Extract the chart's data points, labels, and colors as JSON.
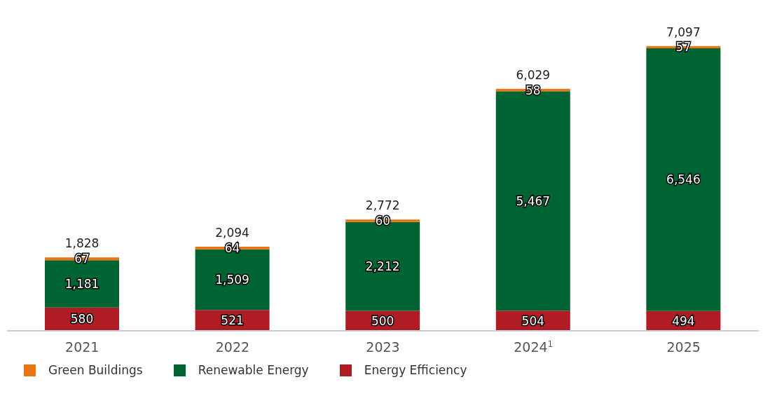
{
  "chart_data": {
    "type": "bar",
    "stacked": true,
    "categories": [
      "2021",
      "2022",
      "2023",
      "2024$^{1}$",
      "2025"
    ],
    "series": [
      {
        "name": "Energy Efficiency",
        "color": "#b01c23",
        "values": [
          580,
          521,
          500,
          504,
          494
        ],
        "value_labels": [
          "580",
          "521",
          "500",
          "504",
          "494"
        ]
      },
      {
        "name": "Renewable Energy",
        "color": "#006432",
        "values": [
          1181,
          1509,
          2212,
          5467,
          6546
        ],
        "value_labels": [
          "1,181",
          "1,509",
          "2,212",
          "5,467",
          "6,546"
        ]
      },
      {
        "name": "Green Buildings",
        "color": "#e87511",
        "values": [
          67,
          64,
          60,
          58,
          57
        ],
        "value_labels": [
          "67",
          "64",
          "60",
          "58",
          "57"
        ]
      }
    ],
    "totals": [
      "1,828",
      "2,094",
      "2,772",
      "6,029",
      "7,097"
    ],
    "tick_labels": "x",
    "legend": "bottom left"
  }
}
